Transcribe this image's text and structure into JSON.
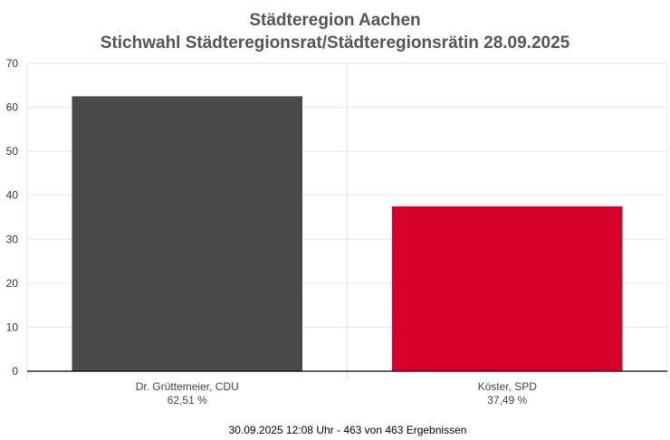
{
  "chart_data": {
    "type": "bar",
    "title": "Städteregion Aachen",
    "subtitle": "Stichwahl Städteregionsrat/Städteregionsrätin 28.09.2025",
    "categories": [
      "Dr. Grüttemeier, CDU",
      "Köster, SPD"
    ],
    "value_labels": [
      "62,51 %",
      "37,49 %"
    ],
    "values": [
      62.51,
      37.49
    ],
    "colors": [
      "#4a4a4a",
      "#d6002a"
    ],
    "ylim": [
      0,
      70
    ],
    "yticks": [
      "0",
      "10",
      "20",
      "30",
      "40",
      "50",
      "60",
      "70"
    ],
    "xlabel": "",
    "ylabel": "",
    "grid": true,
    "footer": "30.09.2025 12:08 Uhr - 463 von 463 Ergebnissen"
  }
}
